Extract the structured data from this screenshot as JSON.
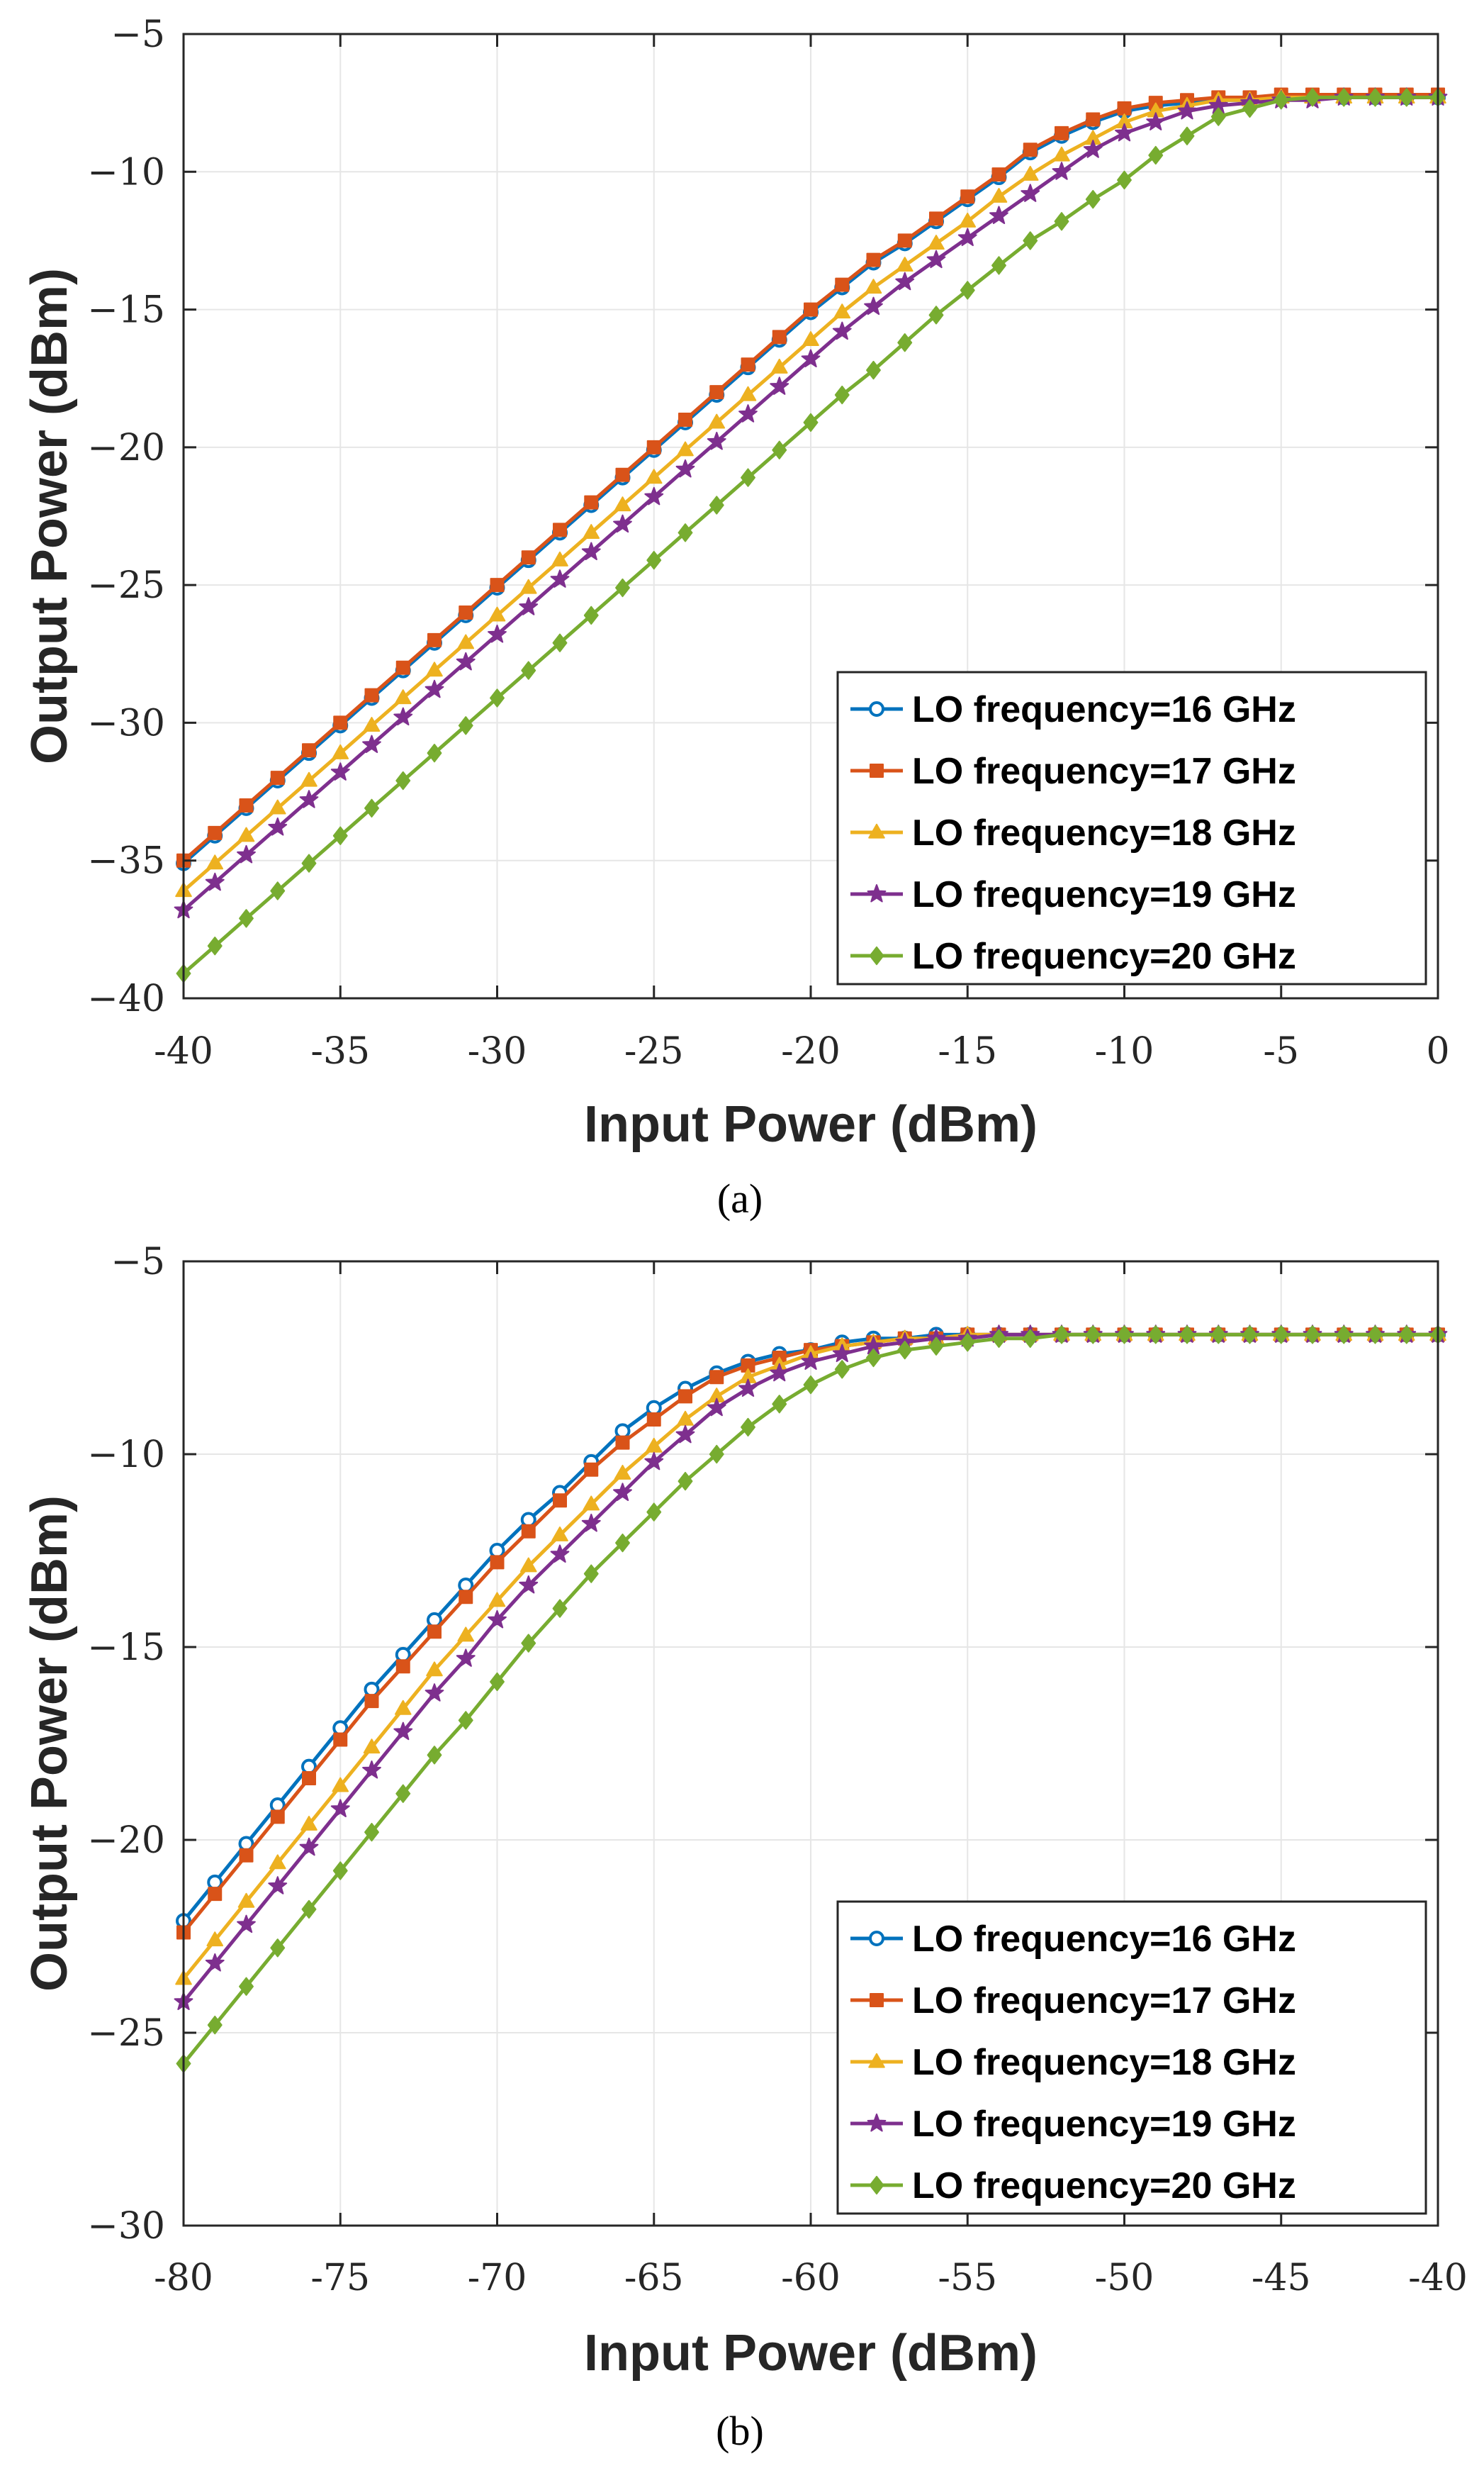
{
  "chart_data": [
    {
      "type": "line",
      "caption": "(a)",
      "xlabel": "Input Power (dBm)",
      "ylabel": "Output Power (dBm)",
      "xlim": [
        -40,
        0
      ],
      "ylim": [
        -40,
        -5
      ],
      "xticks": [
        -40,
        -35,
        -30,
        -25,
        -20,
        -15,
        -10,
        -5,
        0
      ],
      "xtick_labels": [
        "-40",
        "-35",
        "-30",
        "-25",
        "-20",
        "-15",
        "-10",
        "-5",
        "0"
      ],
      "yticks": [
        -40,
        -35,
        -30,
        -25,
        -20,
        -15,
        -10,
        -5
      ],
      "ytick_labels": [
        "−40",
        "−35",
        "−30",
        "−25",
        "−20",
        "−15",
        "−10",
        "−5"
      ],
      "grid": true,
      "legend_position": "bottom-right",
      "x": [
        -40,
        -39,
        -38,
        -37,
        -36,
        -35,
        -34,
        -33,
        -32,
        -31,
        -30,
        -29,
        -28,
        -27,
        -26,
        -25,
        -24,
        -23,
        -22,
        -21,
        -20,
        -19,
        -18,
        -17,
        -16,
        -15,
        -14,
        -13,
        -12,
        -11,
        -10,
        -9,
        -8,
        -7,
        -6,
        -5,
        -4,
        -3,
        -2,
        -1,
        0
      ],
      "series": [
        {
          "name": "LO frequency=16 GHz",
          "color": "#0072BD",
          "marker": "circle",
          "values": [
            -35.1,
            -34.1,
            -33.1,
            -32.1,
            -31.1,
            -30.1,
            -29.1,
            -28.1,
            -27.1,
            -26.1,
            -25.1,
            -24.1,
            -23.1,
            -22.1,
            -21.1,
            -20.1,
            -19.1,
            -18.1,
            -17.1,
            -16.1,
            -15.1,
            -14.2,
            -13.3,
            -12.6,
            -11.8,
            -11.0,
            -10.2,
            -9.3,
            -8.7,
            -8.2,
            -7.8,
            -7.6,
            -7.5,
            -7.4,
            -7.4,
            -7.3,
            -7.3,
            -7.3,
            -7.3,
            -7.3,
            -7.3
          ]
        },
        {
          "name": "LO frequency=17 GHz",
          "color": "#D95319",
          "marker": "square",
          "values": [
            -35.0,
            -34.0,
            -33.0,
            -32.0,
            -31.0,
            -30.0,
            -29.0,
            -28.0,
            -27.0,
            -26.0,
            -25.0,
            -24.0,
            -23.0,
            -22.0,
            -21.0,
            -20.0,
            -19.0,
            -18.0,
            -17.0,
            -16.0,
            -15.0,
            -14.1,
            -13.2,
            -12.5,
            -11.7,
            -10.9,
            -10.1,
            -9.2,
            -8.6,
            -8.1,
            -7.7,
            -7.5,
            -7.4,
            -7.3,
            -7.3,
            -7.2,
            -7.2,
            -7.2,
            -7.2,
            -7.2,
            -7.2
          ]
        },
        {
          "name": "LO frequency=18 GHz",
          "color": "#EDB120",
          "marker": "triangle",
          "values": [
            -36.1,
            -35.1,
            -34.1,
            -33.1,
            -32.1,
            -31.1,
            -30.1,
            -29.1,
            -28.1,
            -27.1,
            -26.1,
            -25.1,
            -24.1,
            -23.1,
            -22.1,
            -21.1,
            -20.1,
            -19.1,
            -18.1,
            -17.1,
            -16.1,
            -15.1,
            -14.2,
            -13.4,
            -12.6,
            -11.8,
            -10.9,
            -10.1,
            -9.4,
            -8.8,
            -8.2,
            -7.8,
            -7.6,
            -7.4,
            -7.4,
            -7.3,
            -7.3,
            -7.3,
            -7.3,
            -7.3,
            -7.3
          ]
        },
        {
          "name": "LO frequency=19 GHz",
          "color": "#7E2F8E",
          "marker": "star",
          "values": [
            -36.8,
            -35.8,
            -34.8,
            -33.8,
            -32.8,
            -31.8,
            -30.8,
            -29.8,
            -28.8,
            -27.8,
            -26.8,
            -25.8,
            -24.8,
            -23.8,
            -22.8,
            -21.8,
            -20.8,
            -19.8,
            -18.8,
            -17.8,
            -16.8,
            -15.8,
            -14.9,
            -14.0,
            -13.2,
            -12.4,
            -11.6,
            -10.8,
            -10.0,
            -9.2,
            -8.6,
            -8.2,
            -7.8,
            -7.6,
            -7.5,
            -7.4,
            -7.4,
            -7.3,
            -7.3,
            -7.3,
            -7.3
          ]
        },
        {
          "name": "LO frequency=20 GHz",
          "color": "#77AC30",
          "marker": "diamond",
          "values": [
            -39.1,
            -38.1,
            -37.1,
            -36.1,
            -35.1,
            -34.1,
            -33.1,
            -32.1,
            -31.1,
            -30.1,
            -29.1,
            -28.1,
            -27.1,
            -26.1,
            -25.1,
            -24.1,
            -23.1,
            -22.1,
            -21.1,
            -20.1,
            -19.1,
            -18.1,
            -17.2,
            -16.2,
            -15.2,
            -14.3,
            -13.4,
            -12.5,
            -11.8,
            -11.0,
            -10.3,
            -9.4,
            -8.7,
            -8.0,
            -7.7,
            -7.4,
            -7.3,
            -7.3,
            -7.3,
            -7.3,
            -7.3
          ]
        }
      ]
    },
    {
      "type": "line",
      "caption": "(b)",
      "xlabel": "Input Power (dBm)",
      "ylabel": "Output Power (dBm)",
      "xlim": [
        -80,
        -40
      ],
      "ylim": [
        -30,
        -5
      ],
      "xticks": [
        -80,
        -75,
        -70,
        -65,
        -60,
        -55,
        -50,
        -45,
        -40
      ],
      "xtick_labels": [
        "-80",
        "-75",
        "-70",
        "-65",
        "-60",
        "-55",
        "-50",
        "-45",
        "-40"
      ],
      "yticks": [
        -30,
        -25,
        -20,
        -15,
        -10,
        -5
      ],
      "ytick_labels": [
        "−30",
        "−25",
        "−20",
        "−15",
        "−10",
        "−5"
      ],
      "grid": true,
      "legend_position": "bottom-right",
      "x": [
        -80,
        -79,
        -78,
        -77,
        -76,
        -75,
        -74,
        -73,
        -72,
        -71,
        -70,
        -69,
        -68,
        -67,
        -66,
        -65,
        -64,
        -63,
        -62,
        -61,
        -60,
        -59,
        -58,
        -57,
        -56,
        -55,
        -54,
        -53,
        -52,
        -51,
        -50,
        -49,
        -48,
        -47,
        -46,
        -45,
        -44,
        -43,
        -42,
        -41,
        -40
      ],
      "series": [
        {
          "name": "LO frequency=16 GHz",
          "color": "#0072BD",
          "marker": "circle",
          "values": [
            -22.1,
            -21.1,
            -20.1,
            -19.1,
            -18.1,
            -17.1,
            -16.1,
            -15.2,
            -14.3,
            -13.4,
            -12.5,
            -11.7,
            -11.0,
            -10.2,
            -9.4,
            -8.8,
            -8.3,
            -7.9,
            -7.6,
            -7.4,
            -7.3,
            -7.1,
            -7.0,
            -7.0,
            -6.9,
            -6.9,
            -6.9,
            -6.9,
            -6.9,
            -6.9,
            -6.9,
            -6.9,
            -6.9,
            -6.9,
            -6.9,
            -6.9,
            -6.9,
            -6.9,
            -6.9,
            -6.9,
            -6.9
          ]
        },
        {
          "name": "LO frequency=17 GHz",
          "color": "#D95319",
          "marker": "square",
          "values": [
            -22.4,
            -21.4,
            -20.4,
            -19.4,
            -18.4,
            -17.4,
            -16.4,
            -15.5,
            -14.6,
            -13.7,
            -12.8,
            -12.0,
            -11.2,
            -10.4,
            -9.7,
            -9.1,
            -8.5,
            -8.0,
            -7.7,
            -7.5,
            -7.3,
            -7.2,
            -7.1,
            -7.0,
            -7.0,
            -6.9,
            -6.9,
            -6.9,
            -6.9,
            -6.9,
            -6.9,
            -6.9,
            -6.9,
            -6.9,
            -6.9,
            -6.9,
            -6.9,
            -6.9,
            -6.9,
            -6.9,
            -6.9
          ]
        },
        {
          "name": "LO frequency=18 GHz",
          "color": "#EDB120",
          "marker": "triangle",
          "values": [
            -23.6,
            -22.6,
            -21.6,
            -20.6,
            -19.6,
            -18.6,
            -17.6,
            -16.6,
            -15.6,
            -14.7,
            -13.8,
            -12.9,
            -12.1,
            -11.3,
            -10.5,
            -9.8,
            -9.1,
            -8.5,
            -8.0,
            -7.7,
            -7.4,
            -7.2,
            -7.1,
            -7.0,
            -7.0,
            -6.9,
            -6.9,
            -6.9,
            -6.9,
            -6.9,
            -6.9,
            -6.9,
            -6.9,
            -6.9,
            -6.9,
            -6.9,
            -6.9,
            -6.9,
            -6.9,
            -6.9,
            -6.9
          ]
        },
        {
          "name": "LO frequency=19 GHz",
          "color": "#7E2F8E",
          "marker": "star",
          "values": [
            -24.2,
            -23.2,
            -22.2,
            -21.2,
            -20.2,
            -19.2,
            -18.2,
            -17.2,
            -16.2,
            -15.3,
            -14.3,
            -13.4,
            -12.6,
            -11.8,
            -11.0,
            -10.2,
            -9.5,
            -8.8,
            -8.3,
            -7.9,
            -7.6,
            -7.4,
            -7.2,
            -7.1,
            -7.0,
            -7.0,
            -6.9,
            -6.9,
            -6.9,
            -6.9,
            -6.9,
            -6.9,
            -6.9,
            -6.9,
            -6.9,
            -6.9,
            -6.9,
            -6.9,
            -6.9,
            -6.9,
            -6.9
          ]
        },
        {
          "name": "LO frequency=20 GHz",
          "color": "#77AC30",
          "marker": "diamond",
          "values": [
            -25.8,
            -24.8,
            -23.8,
            -22.8,
            -21.8,
            -20.8,
            -19.8,
            -18.8,
            -17.8,
            -16.9,
            -15.9,
            -14.9,
            -14.0,
            -13.1,
            -12.3,
            -11.5,
            -10.7,
            -10.0,
            -9.3,
            -8.7,
            -8.2,
            -7.8,
            -7.5,
            -7.3,
            -7.2,
            -7.1,
            -7.0,
            -7.0,
            -6.9,
            -6.9,
            -6.9,
            -6.9,
            -6.9,
            -6.9,
            -6.9,
            -6.9,
            -6.9,
            -6.9,
            -6.9,
            -6.9,
            -6.9
          ]
        }
      ]
    }
  ]
}
